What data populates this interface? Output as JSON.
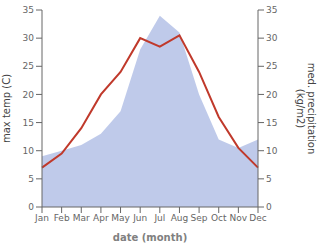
{
  "chart_data": {
    "type": "line",
    "categories": [
      "Jan",
      "Feb",
      "Mar",
      "Apr",
      "May",
      "Jun",
      "Jul",
      "Aug",
      "Sep",
      "Oct",
      "Nov",
      "Dec"
    ],
    "series": [
      {
        "type": "area",
        "axis": "y2",
        "color": "#b8c4e8",
        "values": [
          9,
          10,
          11,
          13,
          17,
          28,
          34,
          31,
          20,
          12,
          10.5,
          12
        ]
      },
      {
        "type": "line",
        "axis": "y",
        "color": "#c0392b",
        "values": [
          7,
          9.5,
          14,
          20,
          24,
          30,
          28.5,
          30.5,
          24,
          16,
          10.5,
          7
        ]
      }
    ],
    "x_label": "date (month)",
    "y_label": "max temp (C)",
    "y2_label": "med. precipitation\n(kg/m2)",
    "ylim": [
      0,
      35
    ],
    "yticks": [
      0,
      5,
      10,
      15,
      20,
      25,
      30,
      35
    ],
    "y2lim": [
      0,
      35
    ],
    "y2ticks": [
      0,
      5,
      10,
      15,
      20,
      25,
      30,
      35
    ],
    "grid": false
  }
}
